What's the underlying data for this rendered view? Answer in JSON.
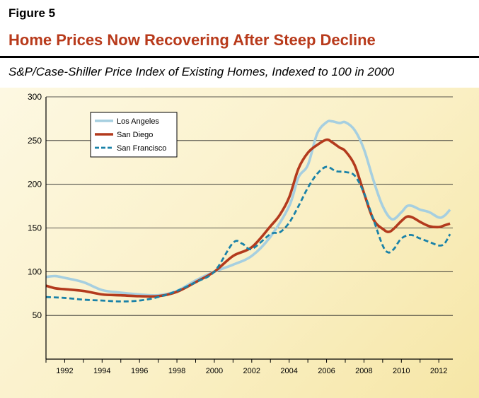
{
  "figure": {
    "label": "Figure 5",
    "title": "Home Prices Now Recovering After Steep Decline",
    "subtitle": "S&P/Case-Shiller Price Index of Existing Homes, Indexed to 100 in 2000"
  },
  "chart_data": {
    "type": "line",
    "title": "Home Prices Now Recovering After Steep Decline",
    "xlabel": "",
    "ylabel": "",
    "xlim": [
      1991,
      2012.75
    ],
    "ylim": [
      0,
      300
    ],
    "yticks": [
      50,
      100,
      150,
      200,
      250,
      300
    ],
    "xticks": [
      1992,
      1994,
      1996,
      1998,
      2000,
      2002,
      2004,
      2006,
      2008,
      2010,
      2012
    ],
    "legend_position": "top-left",
    "series": [
      {
        "name": "Los Angeles",
        "color": "#a6cfe0",
        "style": "solid",
        "x": [
          1991,
          1991.5,
          1992,
          1993,
          1994,
          1995,
          1996,
          1997,
          1998,
          1999,
          2000,
          2001,
          2002,
          2003,
          2004,
          2004.5,
          2005,
          2005.5,
          2006,
          2006.3,
          2006.7,
          2007,
          2007.5,
          2008,
          2008.5,
          2009,
          2009.5,
          2010,
          2010.3,
          2010.6,
          2011,
          2011.5,
          2012,
          2012.3,
          2012.6
        ],
        "values": [
          94,
          95,
          93,
          88,
          79,
          76,
          74,
          73,
          78,
          90,
          100,
          108,
          118,
          140,
          175,
          208,
          222,
          258,
          271,
          272,
          270,
          271,
          262,
          240,
          205,
          175,
          160,
          168,
          175,
          175,
          171,
          168,
          162,
          164,
          171
        ]
      },
      {
        "name": "San Diego",
        "color": "#b33a1d",
        "style": "solid",
        "x": [
          1991,
          1991.5,
          1992,
          1993,
          1994,
          1995,
          1996,
          1997,
          1998,
          1999,
          2000,
          2001,
          2002,
          2003,
          2003.5,
          2004,
          2004.5,
          2005,
          2005.5,
          2006,
          2006.3,
          2006.7,
          2007,
          2007.5,
          2008,
          2008.5,
          2009,
          2009.4,
          2010,
          2010.3,
          2010.6,
          2011,
          2011.5,
          2012,
          2012.3,
          2012.6
        ],
        "values": [
          84,
          81,
          80,
          78,
          74,
          73,
          72,
          72,
          77,
          88,
          100,
          118,
          128,
          152,
          165,
          185,
          218,
          236,
          245,
          251,
          248,
          242,
          238,
          222,
          190,
          160,
          149,
          146,
          158,
          163,
          162,
          157,
          152,
          151,
          153,
          155
        ]
      },
      {
        "name": "San Francisco",
        "color": "#1a82a8",
        "style": "dashed",
        "x": [
          1991,
          1992,
          1993,
          1994,
          1995,
          1996,
          1997,
          1998,
          1999,
          2000,
          2001,
          2001.5,
          2002,
          2003,
          2003.5,
          2004,
          2004.5,
          2005,
          2005.5,
          2006,
          2006.5,
          2007,
          2007.5,
          2008,
          2008.5,
          2009,
          2009.3,
          2009.6,
          2010,
          2010.5,
          2011,
          2011.5,
          2012,
          2012.3,
          2012.6
        ],
        "values": [
          71,
          70,
          68,
          67,
          66,
          67,
          71,
          78,
          88,
          100,
          133,
          132,
          126,
          143,
          145,
          156,
          175,
          196,
          212,
          220,
          215,
          214,
          210,
          190,
          160,
          130,
          122,
          126,
          138,
          142,
          138,
          134,
          130,
          132,
          143
        ]
      }
    ]
  }
}
